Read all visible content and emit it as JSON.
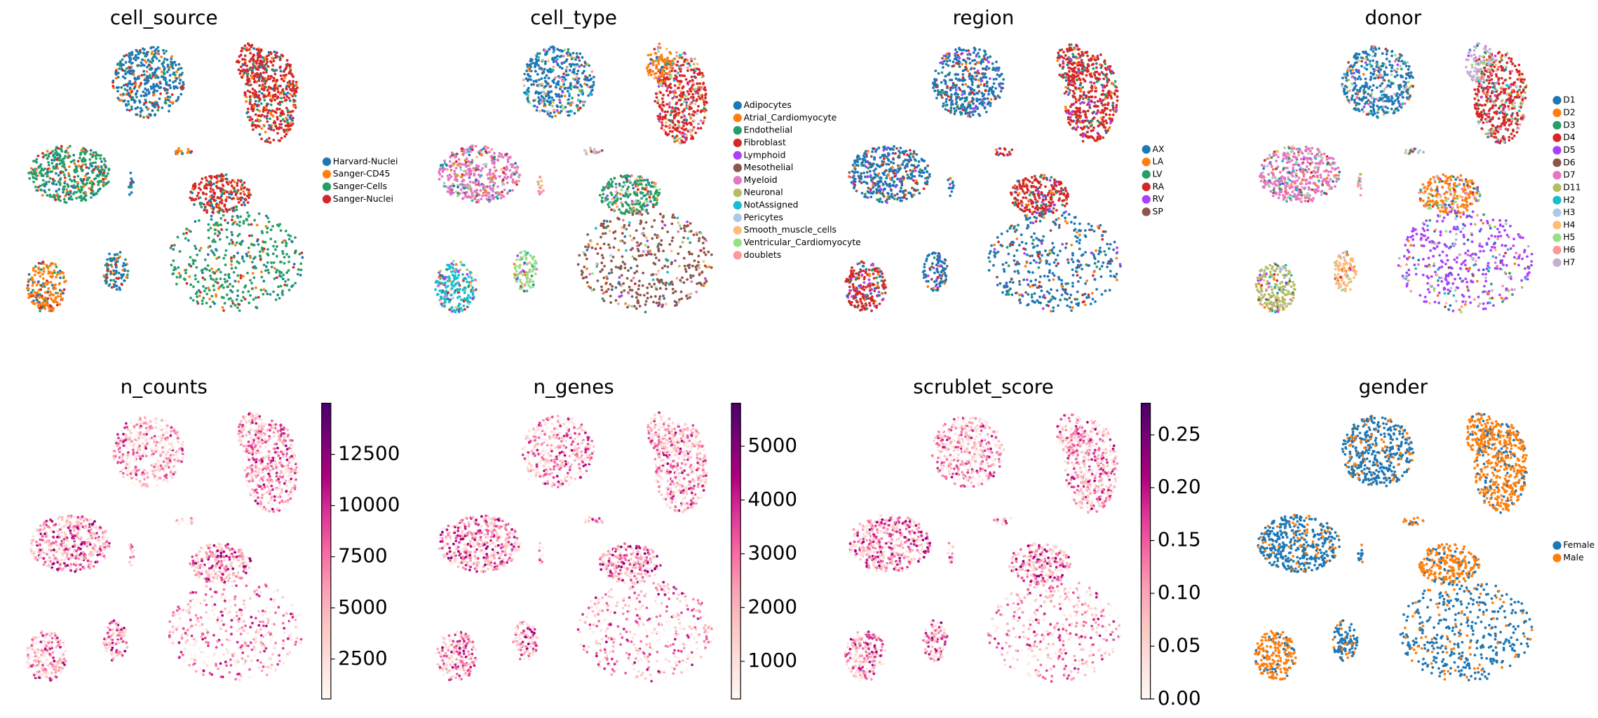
{
  "chart_data": [
    {
      "type": "scatter",
      "title": "cell_source",
      "series": [
        {
          "name": "Harvard-Nuclei",
          "color": "#1f77b4"
        },
        {
          "name": "Sanger-CD45",
          "color": "#ff7f0e"
        },
        {
          "name": "Sanger-Cells",
          "color": "#279e68"
        },
        {
          "name": "Sanger-Nuclei",
          "color": "#d62728"
        }
      ]
    },
    {
      "type": "scatter",
      "title": "cell_type",
      "series": [
        {
          "name": "Adipocytes",
          "color": "#1f77b4"
        },
        {
          "name": "Atrial_Cardiomyocyte",
          "color": "#ff7f0e"
        },
        {
          "name": "Endothelial",
          "color": "#279e68"
        },
        {
          "name": "Fibroblast",
          "color": "#d62728"
        },
        {
          "name": "Lymphoid",
          "color": "#aa40fc"
        },
        {
          "name": "Mesothelial",
          "color": "#8c564b"
        },
        {
          "name": "Myeloid",
          "color": "#e377c2"
        },
        {
          "name": "Neuronal",
          "color": "#b5bd61"
        },
        {
          "name": "NotAssigned",
          "color": "#17becf"
        },
        {
          "name": "Pericytes",
          "color": "#aec7e8"
        },
        {
          "name": "Smooth_muscle_cells",
          "color": "#ffbb78"
        },
        {
          "name": "Ventricular_Cardiomyocyte",
          "color": "#98df8a"
        },
        {
          "name": "doublets",
          "color": "#ff9896"
        }
      ]
    },
    {
      "type": "scatter",
      "title": "region",
      "series": [
        {
          "name": "AX",
          "color": "#1f77b4"
        },
        {
          "name": "LA",
          "color": "#ff7f0e"
        },
        {
          "name": "LV",
          "color": "#279e68"
        },
        {
          "name": "RA",
          "color": "#d62728"
        },
        {
          "name": "RV",
          "color": "#aa40fc"
        },
        {
          "name": "SP",
          "color": "#8c564b"
        }
      ]
    },
    {
      "type": "scatter",
      "title": "donor",
      "series": [
        {
          "name": "D1",
          "color": "#1f77b4"
        },
        {
          "name": "D2",
          "color": "#ff7f0e"
        },
        {
          "name": "D3",
          "color": "#279e68"
        },
        {
          "name": "D4",
          "color": "#d62728"
        },
        {
          "name": "D5",
          "color": "#aa40fc"
        },
        {
          "name": "D6",
          "color": "#8c564b"
        },
        {
          "name": "D7",
          "color": "#e377c2"
        },
        {
          "name": "D11",
          "color": "#b5bd61"
        },
        {
          "name": "H2",
          "color": "#17becf"
        },
        {
          "name": "H3",
          "color": "#aec7e8"
        },
        {
          "name": "H4",
          "color": "#ffbb78"
        },
        {
          "name": "H5",
          "color": "#98df8a"
        },
        {
          "name": "H6",
          "color": "#ff9896"
        },
        {
          "name": "H7",
          "color": "#c5b0d5"
        }
      ]
    },
    {
      "type": "scatter",
      "title": "n_counts",
      "colormap": [
        "#fff7f3",
        "#fde0dd",
        "#fcc5c0",
        "#fa9fb5",
        "#f768a1",
        "#dd3497",
        "#ae017e",
        "#7a0177",
        "#49006a"
      ],
      "clim": [
        550,
        15000
      ],
      "cticks": [
        2500,
        5000,
        7500,
        10000,
        12500
      ]
    },
    {
      "type": "scatter",
      "title": "n_genes",
      "colormap": [
        "#fff7f3",
        "#fde0dd",
        "#fcc5c0",
        "#fa9fb5",
        "#f768a1",
        "#dd3497",
        "#ae017e",
        "#7a0177",
        "#49006a"
      ],
      "clim": [
        300,
        5800
      ],
      "cticks": [
        1000,
        2000,
        3000,
        4000,
        5000
      ]
    },
    {
      "type": "scatter",
      "title": "scrublet_score",
      "colormap": [
        "#fff7f3",
        "#fde0dd",
        "#fcc5c0",
        "#fa9fb5",
        "#f768a1",
        "#dd3497",
        "#ae017e",
        "#7a0177",
        "#49006a"
      ],
      "clim": [
        0,
        0.28
      ],
      "cticks": [
        {
          "value": 0,
          "label": "0.00"
        },
        0.05,
        {
          "value": 0.1,
          "label": "0.10"
        },
        0.15,
        {
          "value": 0.2,
          "label": "0.20"
        },
        0.25
      ]
    },
    {
      "type": "scatter",
      "title": "gender",
      "series": [
        {
          "name": "Female",
          "color": "#1f77b4"
        },
        {
          "name": "Male",
          "color": "#ff7f0e"
        }
      ]
    }
  ]
}
